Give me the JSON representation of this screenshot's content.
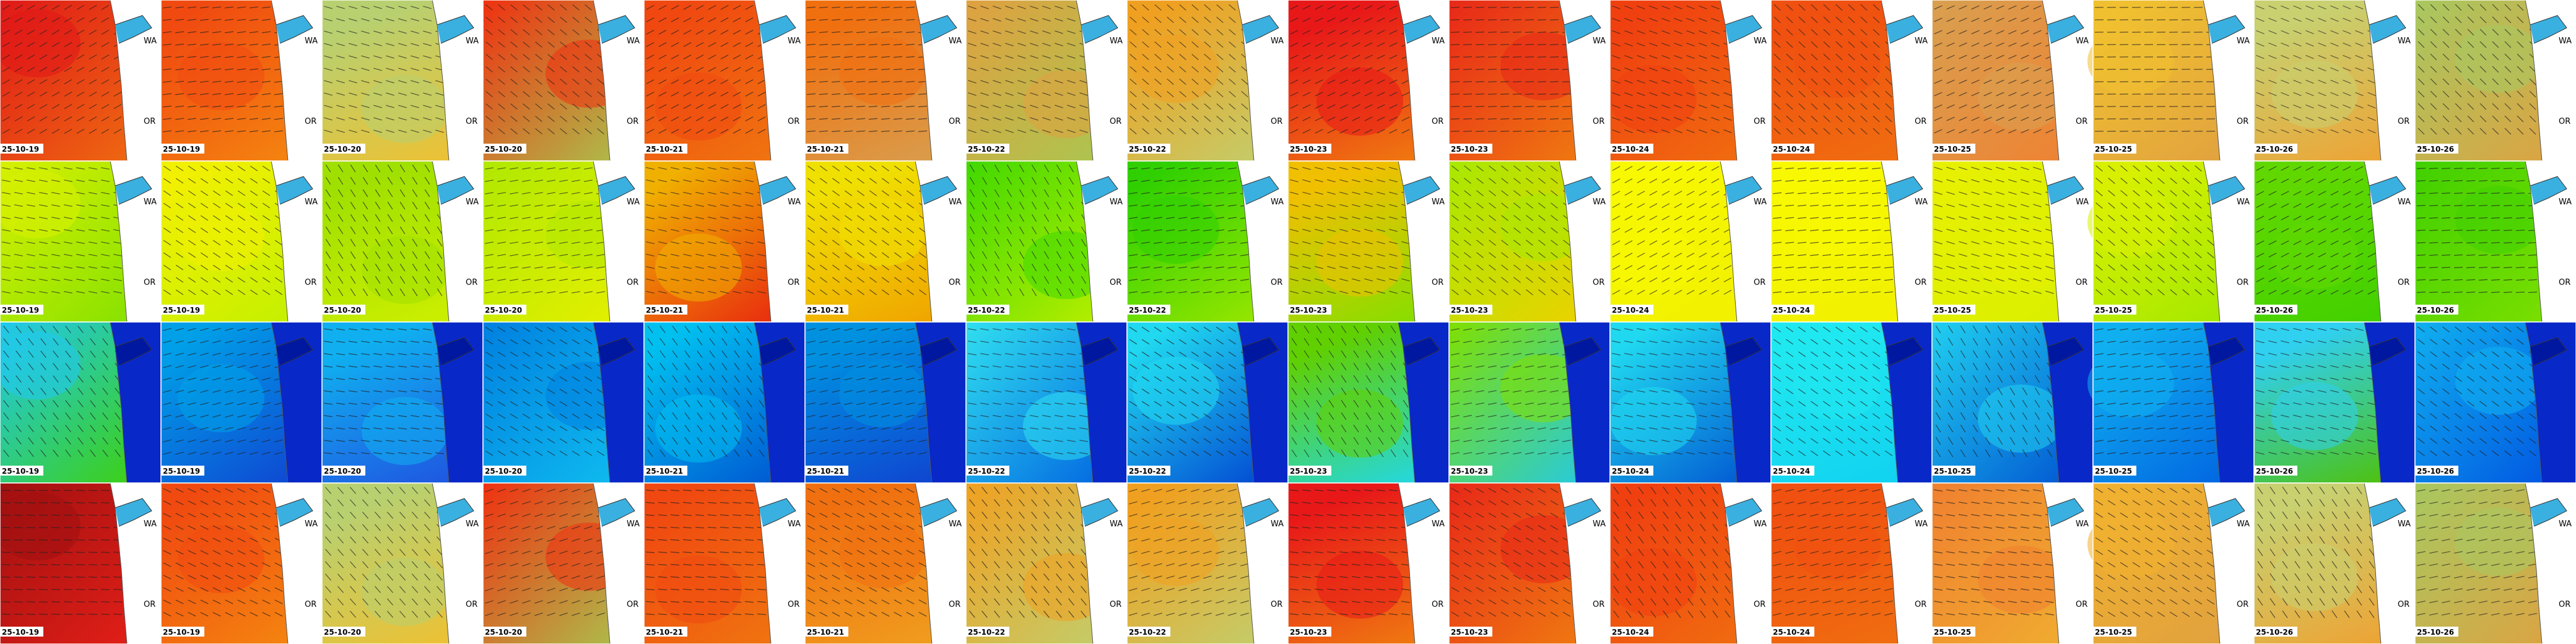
{
  "dates": [
    "25-10-19",
    "25-10-19",
    "25-10-20",
    "25-10-20",
    "25-10-21",
    "25-10-21",
    "25-10-22",
    "25-10-22",
    "25-10-23",
    "25-10-23",
    "25-10-24",
    "25-10-24",
    "25-10-25",
    "25-10-25",
    "25-10-26",
    "25-10-26"
  ],
  "place_labels": [
    "WA",
    "OR"
  ],
  "rows": [
    {
      "land_color": "#ffffff",
      "colors": [
        [
          "#e01818",
          "#f07010"
        ],
        [
          "#f04a10",
          "#f58a10"
        ],
        [
          "#b8d070",
          "#f0c030"
        ],
        [
          "#f03010",
          "#a8c850"
        ],
        [
          "#f04810",
          "#f07810"
        ],
        [
          "#f07010",
          "#d8a050"
        ],
        [
          "#e0a040",
          "#a8c850"
        ],
        [
          "#f0a020",
          "#c0d070"
        ],
        [
          "#e81818",
          "#f08010"
        ],
        [
          "#e82818",
          "#f08010"
        ],
        [
          "#f04010",
          "#f07010"
        ],
        [
          "#f05010",
          "#f07010"
        ],
        [
          "#d8a050",
          "#f08030"
        ],
        [
          "#f0c030",
          "#e0a040"
        ],
        [
          "#c8d070",
          "#f0a030"
        ],
        [
          "#a8c860",
          "#e0a040"
        ]
      ]
    },
    {
      "land_color": "#ffffff",
      "colors": [
        [
          "#d8f000",
          "#80e000"
        ],
        [
          "#f0f000",
          "#c0f000"
        ],
        [
          "#a0e000",
          "#d0f000"
        ],
        [
          "#b0e800",
          "#e8f000"
        ],
        [
          "#f0b000",
          "#e82010"
        ],
        [
          "#f0e000",
          "#f0a000"
        ],
        [
          "#40d800",
          "#c0f000"
        ],
        [
          "#30d000",
          "#a0e800"
        ],
        [
          "#f0c000",
          "#80e000"
        ],
        [
          "#a8e800",
          "#f0d000"
        ],
        [
          "#f8f800",
          "#f0f000"
        ],
        [
          "#f8f800",
          "#f0f000"
        ],
        [
          "#e8f000",
          "#d8f000"
        ],
        [
          "#d8f000",
          "#a0e800"
        ],
        [
          "#60d800",
          "#40d000"
        ],
        [
          "#40d000",
          "#80e000"
        ]
      ]
    },
    {
      "land_color": "#0828c8",
      "colors": [
        [
          "#20c8f0",
          "#40d000"
        ],
        [
          "#00a0e8",
          "#1040d0"
        ],
        [
          "#10b0f0",
          "#2050e0"
        ],
        [
          "#0080e0",
          "#10c0f0"
        ],
        [
          "#00c0f0",
          "#0050d0"
        ],
        [
          "#0090e0",
          "#1040d0"
        ],
        [
          "#30e0f0",
          "#0060e0"
        ],
        [
          "#20d8f0",
          "#0040d0"
        ],
        [
          "#60d000",
          "#20d8f0"
        ],
        [
          "#80e000",
          "#20c8f0"
        ],
        [
          "#20d8f0",
          "#0050d0"
        ],
        [
          "#20e8f0",
          "#10d0f0"
        ],
        [
          "#20d0f0",
          "#0050d0"
        ],
        [
          "#10b0f0",
          "#0060e0"
        ],
        [
          "#30d0f0",
          "#50c000"
        ],
        [
          "#10b0f0",
          "#0050e0"
        ]
      ]
    },
    {
      "land_color": "#ffffff",
      "colors": [
        [
          "#a01010",
          "#e82018"
        ],
        [
          "#f04a10",
          "#f58a10"
        ],
        [
          "#b8d070",
          "#f0c030"
        ],
        [
          "#f03010",
          "#a8c850"
        ],
        [
          "#f04810",
          "#f07810"
        ],
        [
          "#f07010",
          "#f0a020"
        ],
        [
          "#f0a020",
          "#c0d070"
        ],
        [
          "#f0a020",
          "#c0d070"
        ],
        [
          "#e81818",
          "#f08010"
        ],
        [
          "#e82818",
          "#f08010"
        ],
        [
          "#f04010",
          "#f07010"
        ],
        [
          "#f05010",
          "#f07010"
        ],
        [
          "#f08030",
          "#f0b030"
        ],
        [
          "#f0b030",
          "#e0a040"
        ],
        [
          "#c8d070",
          "#f0a030"
        ],
        [
          "#a8c860",
          "#e0a040"
        ]
      ]
    }
  ]
}
